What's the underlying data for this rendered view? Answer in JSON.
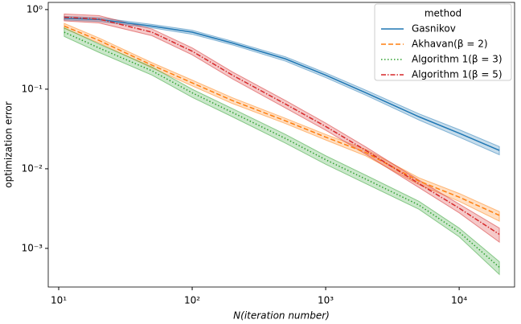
{
  "chart_data": {
    "type": "line",
    "xlabel": "N(iteration number)",
    "ylabel": "optimization error",
    "xscale": "log",
    "yscale": "log",
    "xlim": [
      8.35,
      26000
    ],
    "ylim": [
      0.000327,
      1.23
    ],
    "xticks": [
      {
        "value": 10,
        "label": "10¹"
      },
      {
        "value": 100,
        "label": "10²"
      },
      {
        "value": 1000,
        "label": "10³"
      },
      {
        "value": 10000,
        "label": "10⁴"
      }
    ],
    "yticks": [
      {
        "value": 0.001,
        "label": "10⁻³"
      },
      {
        "value": 0.01,
        "label": "10⁻²"
      },
      {
        "value": 0.1,
        "label": "10⁻¹"
      },
      {
        "value": 1,
        "label": "10⁰"
      }
    ],
    "legend_title": "method",
    "legend_position": "upper right",
    "x": [
      11,
      20,
      50,
      100,
      200,
      500,
      1000,
      2000,
      5000,
      10000,
      20000
    ],
    "series": [
      {
        "name": "Gasnikov",
        "color": "#1f77b4",
        "linestyle": "solid",
        "values": [
          0.78,
          0.75,
          0.62,
          0.52,
          0.38,
          0.24,
          0.15,
          0.09,
          0.045,
          0.028,
          0.017
        ],
        "lower": [
          0.74,
          0.71,
          0.59,
          0.49,
          0.36,
          0.225,
          0.14,
          0.084,
          0.041,
          0.025,
          0.015
        ],
        "upper": [
          0.82,
          0.79,
          0.65,
          0.55,
          0.4,
          0.255,
          0.16,
          0.097,
          0.049,
          0.031,
          0.019
        ]
      },
      {
        "name": "Akhavan(β = 2)",
        "color": "#ff7f0e",
        "linestyle": "dashed",
        "values": [
          0.62,
          0.41,
          0.2,
          0.12,
          0.072,
          0.04,
          0.025,
          0.016,
          0.007,
          0.0044,
          0.0026
        ],
        "lower": [
          0.58,
          0.38,
          0.185,
          0.11,
          0.066,
          0.037,
          0.023,
          0.0145,
          0.0063,
          0.0039,
          0.0022
        ],
        "upper": [
          0.67,
          0.44,
          0.215,
          0.13,
          0.078,
          0.043,
          0.027,
          0.0175,
          0.0077,
          0.0049,
          0.0029
        ]
      },
      {
        "name": "Algorithm 1(β = 3)",
        "color": "#2ca02c",
        "linestyle": "dotted",
        "values": [
          0.52,
          0.33,
          0.17,
          0.09,
          0.051,
          0.024,
          0.013,
          0.0074,
          0.0035,
          0.0016,
          0.00058
        ],
        "lower": [
          0.46,
          0.29,
          0.15,
          0.079,
          0.045,
          0.021,
          0.0114,
          0.0065,
          0.0031,
          0.0014,
          0.00047
        ],
        "upper": [
          0.59,
          0.37,
          0.19,
          0.1,
          0.057,
          0.027,
          0.0146,
          0.0083,
          0.0039,
          0.0018,
          0.00068
        ]
      },
      {
        "name": "Algorithm 1(β = 5)",
        "color": "#d62728",
        "linestyle": "dashdot",
        "values": [
          0.8,
          0.76,
          0.52,
          0.3,
          0.15,
          0.065,
          0.034,
          0.017,
          0.0065,
          0.0032,
          0.0015
        ],
        "lower": [
          0.72,
          0.68,
          0.47,
          0.27,
          0.135,
          0.058,
          0.0305,
          0.0152,
          0.0058,
          0.0028,
          0.0012
        ],
        "upper": [
          0.88,
          0.84,
          0.57,
          0.33,
          0.165,
          0.072,
          0.0375,
          0.0188,
          0.0072,
          0.0036,
          0.0018
        ]
      }
    ]
  }
}
